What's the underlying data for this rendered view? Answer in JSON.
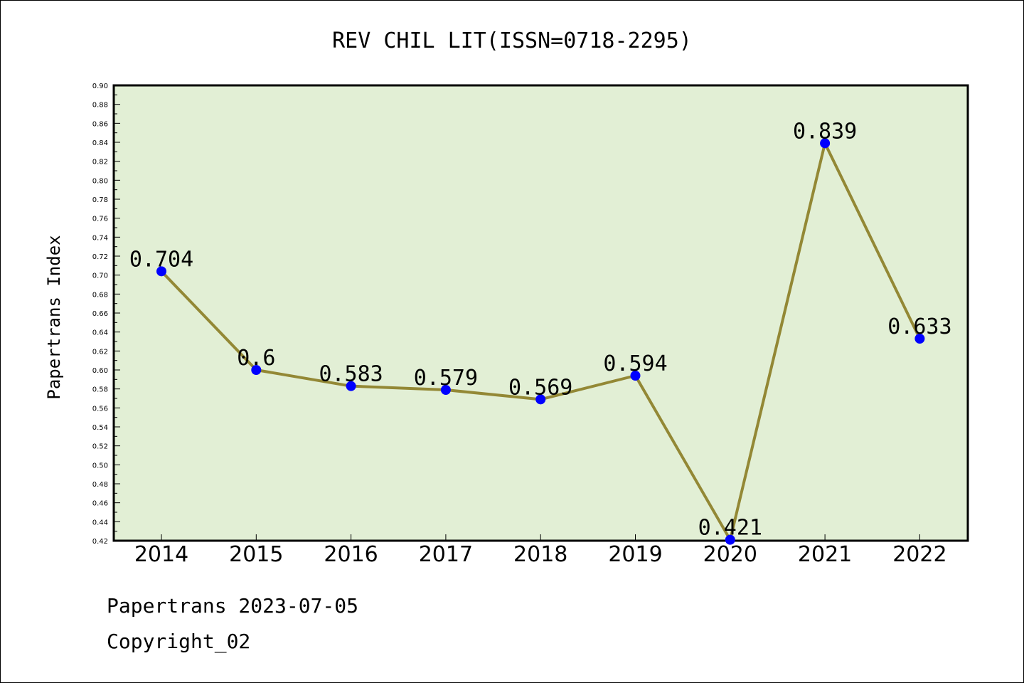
{
  "chart_data": {
    "type": "line",
    "title": "REV CHIL LIT(ISSN=0718-2295)",
    "xlabel": "",
    "ylabel": "Papertrans Index",
    "categories": [
      "2014",
      "2015",
      "2016",
      "2017",
      "2018",
      "2019",
      "2020",
      "2021",
      "2022"
    ],
    "series": [
      {
        "values": [
          0.704,
          0.6,
          0.583,
          0.579,
          0.569,
          0.594,
          0.421,
          0.839,
          0.633
        ],
        "labels": [
          "0.704",
          "0.6",
          "0.583",
          "0.579",
          "0.569",
          "0.594",
          "0.421",
          "0.839",
          "0.633"
        ]
      }
    ],
    "ylim": [
      0.42,
      0.9
    ],
    "yticks": [
      "0.42",
      "0.44",
      "0.46",
      "0.48",
      "0.50",
      "0.52",
      "0.54",
      "0.56",
      "0.58",
      "0.60",
      "0.62",
      "0.64",
      "0.66",
      "0.68",
      "0.70",
      "0.72",
      "0.74",
      "0.76",
      "0.78",
      "0.80",
      "0.82",
      "0.84",
      "0.86",
      "0.88",
      "0.90"
    ],
    "grid": false,
    "legend": "none",
    "colors": {
      "plot_background": "#e2efd5",
      "line": "#938835",
      "marker": "#0000ff"
    }
  },
  "footer": {
    "line1": "Papertrans 2023-07-05",
    "line2": "Copyright_02"
  }
}
